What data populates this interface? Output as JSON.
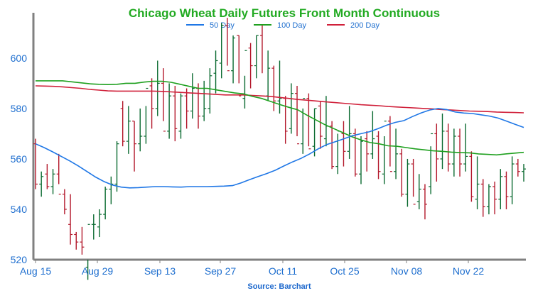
{
  "chart_data": {
    "type": "ohlc",
    "title": "Chicago Wheat Daily Futures Front Month Continuous",
    "source": "Source: Barchart",
    "x_tick_labels": [
      "Aug 15",
      "Aug 29",
      "Sep 13",
      "Sep 27",
      "Oct 11",
      "Oct 25",
      "Nov 08",
      "Nov 22"
    ],
    "y_tick_labels": [
      "520",
      "540",
      "560",
      "580",
      "600"
    ],
    "ylim": [
      520,
      618
    ],
    "colors": {
      "title": "#22aa22",
      "tick": "#1f6fcf",
      "source": "#1a66cc",
      "axis": "#808080",
      "up": "#0a6a30",
      "down": "#b3182b"
    },
    "legend": [
      {
        "label": "50 Day",
        "color": "#1f77e6"
      },
      {
        "label": "100 Day",
        "color": "#1fa01f"
      },
      {
        "label": "200 Day",
        "color": "#d0203a"
      }
    ],
    "series": [
      {
        "name": "50 Day",
        "color": "#1f77e6",
        "values": [
          566.0,
          564.5,
          562.8,
          561.0,
          559.2,
          557.2,
          555.0,
          552.8,
          551.0,
          549.6,
          548.8,
          548.5,
          548.6,
          548.8,
          549.0,
          549.0,
          548.9,
          548.8,
          549.0,
          549.0,
          549.0,
          549.1,
          549.2,
          549.4,
          550.5,
          551.8,
          553.0,
          554.2,
          555.5,
          557.2,
          558.8,
          560.2,
          562.0,
          564.0,
          565.7,
          566.8,
          568.0,
          569.2,
          570.0,
          570.8,
          572.0,
          573.4,
          574.5,
          575.2,
          576.8,
          578.2,
          579.4,
          580.0,
          579.6,
          578.6,
          578.2,
          578.0,
          577.5,
          577.0,
          576.2,
          575.0,
          573.7,
          572.5
        ]
      },
      {
        "name": "100 Day",
        "color": "#1fa01f",
        "values": [
          591.0,
          591.0,
          591.0,
          591.0,
          590.6,
          590.2,
          589.8,
          589.6,
          589.5,
          589.6,
          590.0,
          590.0,
          590.5,
          590.8,
          590.8,
          590.4,
          589.6,
          588.8,
          588.0,
          588.0,
          587.4,
          586.8,
          586.2,
          585.8,
          584.8,
          584.0,
          582.8,
          581.6,
          580.5,
          579.5,
          577.4,
          575.5,
          573.6,
          572.0,
          570.4,
          568.8,
          567.5,
          566.5,
          566.0,
          565.2,
          565.0,
          564.5,
          564.0,
          563.6,
          563.2,
          563.0,
          562.7,
          562.5,
          562.4,
          562.0,
          561.8,
          561.6,
          562.0,
          562.3,
          562.6
        ]
      },
      {
        "name": "200 Day",
        "color": "#d0203a",
        "values": [
          589.0,
          588.9,
          588.8,
          588.6,
          588.3,
          588.0,
          587.6,
          587.3,
          587.0,
          586.9,
          586.9,
          586.9,
          586.9,
          586.9,
          586.8,
          586.6,
          586.4,
          586.2,
          586.0,
          585.8,
          585.6,
          585.4,
          585.4,
          585.4,
          585.2,
          585.0,
          584.8,
          584.4,
          584.0,
          583.6,
          583.3,
          583.0,
          582.7,
          582.4,
          582.1,
          581.8,
          581.5,
          581.3,
          581.1,
          580.8,
          580.6,
          580.4,
          580.2,
          580.0,
          579.8,
          579.6,
          579.4,
          579.2,
          579.0,
          578.9,
          578.8,
          578.6,
          578.5,
          578.4,
          578.3
        ]
      },
      {
        "name": "price_highs",
        "values": [
          568,
          555,
          558,
          556,
          562,
          548,
          546,
          531,
          533,
          520,
          538,
          540,
          549,
          553,
          567,
          583,
          581,
          575,
          580,
          581,
          592,
          599,
          596,
          590,
          589,
          586,
          588,
          594,
          590,
          591,
          596,
          603,
          614,
          616,
          609,
          609,
          593,
          606,
          609,
          613,
          603,
          597,
          599,
          585,
          590,
          589,
          580,
          586,
          580,
          583,
          585,
          575,
          570,
          575,
          581,
          572,
          569,
          571,
          579,
          571,
          569,
          577,
          572,
          564,
          560,
          560,
          554,
          550,
          565,
          574,
          578,
          574,
          572,
          572,
          574,
          563,
          561,
          552,
          550,
          551,
          556,
          555,
          561,
          560,
          558
        ]
      },
      {
        "name": "price_lows",
        "values": [
          548,
          545,
          548,
          546,
          550,
          538,
          526,
          524,
          522,
          512,
          528,
          529,
          536,
          542,
          547,
          565,
          562,
          555,
          563,
          566,
          572,
          577,
          575,
          568,
          567,
          568,
          572,
          576,
          572,
          575,
          578,
          586,
          592,
          597,
          590,
          590,
          580,
          588,
          592,
          594,
          583,
          579,
          578,
          566,
          570,
          569,
          562,
          565,
          561,
          564,
          565,
          556,
          554,
          557,
          560,
          553,
          550,
          555,
          560,
          552,
          550,
          557,
          552,
          545,
          541,
          545,
          540,
          536,
          546,
          551,
          556,
          555,
          553,
          553,
          555,
          543,
          540,
          537,
          538,
          538,
          540,
          540,
          542,
          553,
          551
        ]
      },
      {
        "name": "price_opens",
        "values": [
          566,
          550,
          554,
          549,
          554,
          546,
          534,
          530,
          527,
          517,
          534,
          533,
          538,
          548,
          550,
          580,
          567,
          575,
          566,
          569,
          589,
          580,
          590,
          571,
          585,
          571,
          585,
          579,
          588,
          577,
          580,
          594,
          598,
          613,
          595,
          609,
          584,
          604,
          597,
          609,
          585,
          596,
          583,
          584,
          572,
          586,
          566,
          584,
          565,
          581,
          568,
          573,
          557,
          570,
          563,
          570,
          554,
          568,
          562,
          569,
          554,
          575,
          555,
          562,
          546,
          558,
          543,
          548,
          549,
          570,
          560,
          571,
          558,
          569,
          558,
          561,
          544,
          550,
          541,
          549,
          544,
          553,
          545,
          558,
          555
        ]
      },
      {
        "name": "price_closes",
        "values": [
          550,
          553,
          549,
          554,
          546,
          540,
          530,
          527,
          525,
          534,
          534,
          538,
          548,
          550,
          566,
          567,
          575,
          566,
          569,
          588,
          580,
          590,
          571,
          585,
          572,
          585,
          579,
          588,
          577,
          580,
          593,
          599,
          613,
          595,
          608,
          585,
          603,
          597,
          609,
          585,
          596,
          583,
          584,
          571,
          586,
          566,
          584,
          564,
          580,
          569,
          573,
          557,
          571,
          563,
          570,
          554,
          567,
          562,
          568,
          555,
          575,
          555,
          562,
          546,
          558,
          542,
          548,
          542,
          570,
          560,
          571,
          558,
          569,
          558,
          561,
          545,
          550,
          541,
          549,
          544,
          553,
          545,
          558,
          555,
          556
        ]
      }
    ]
  }
}
